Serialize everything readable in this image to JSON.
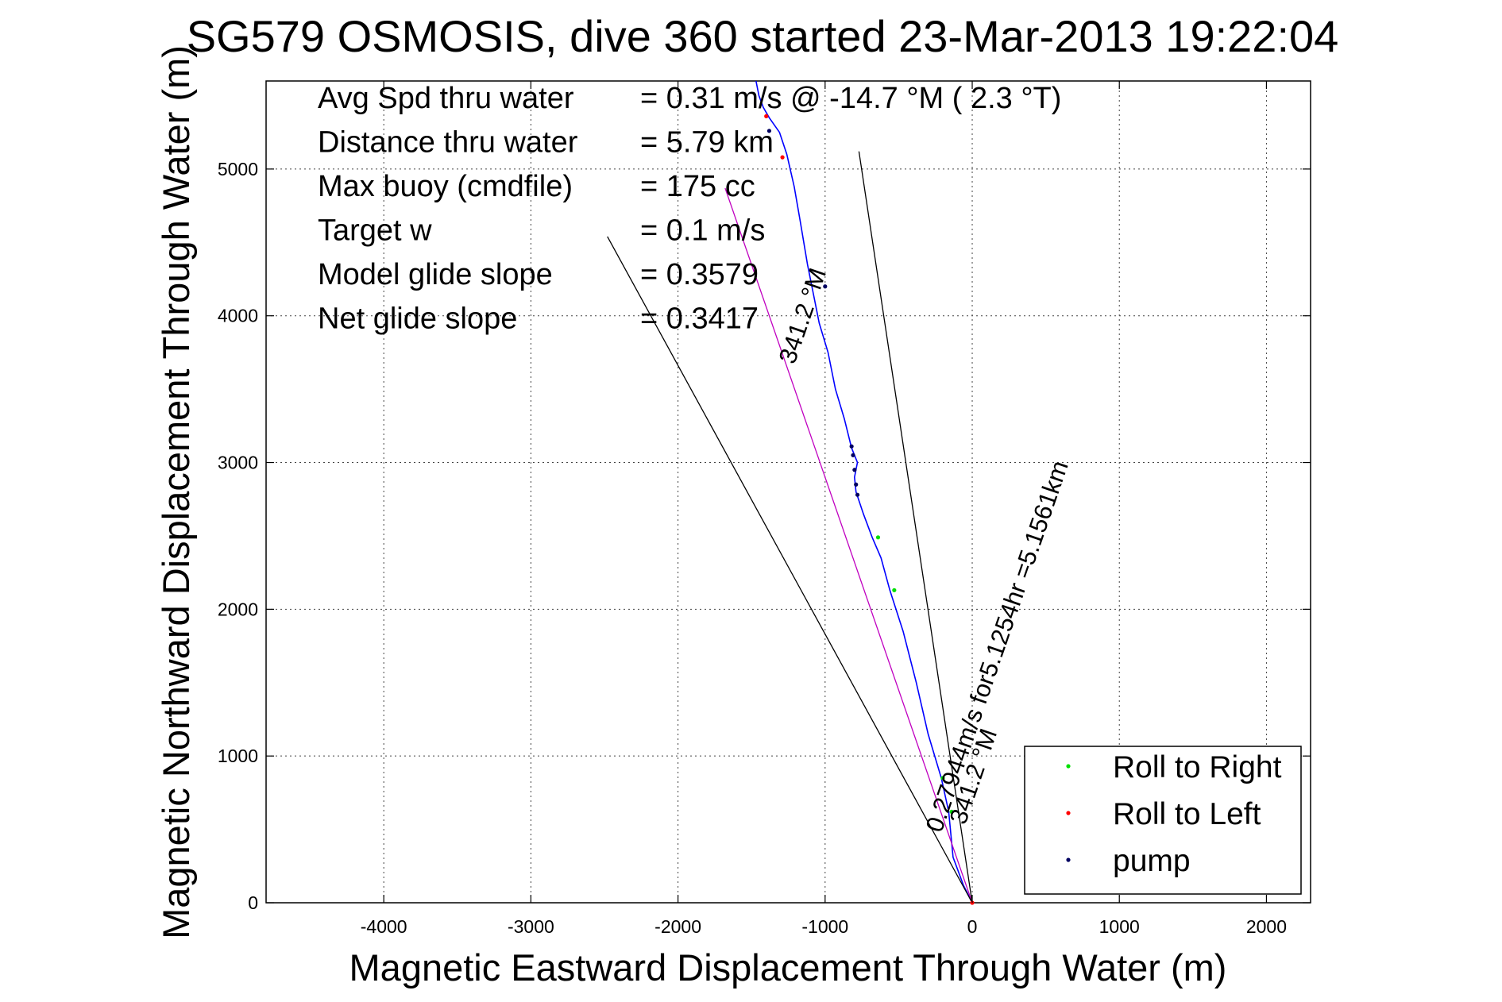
{
  "chart_data": {
    "type": "line",
    "title": "SG579 OSMOSIS, dive 360 started 23-Mar-2013 19:22:04",
    "xlabel": "Magnetic Eastward Displacement Through Water (m)",
    "ylabel": "Magnetic Northward Displacement Through Water (m)",
    "xlim": [
      -4800,
      2300
    ],
    "ylim": [
      0,
      5600
    ],
    "x_ticks": [
      -4000,
      -3000,
      -2000,
      -1000,
      0,
      1000,
      2000
    ],
    "y_ticks": [
      0,
      1000,
      2000,
      3000,
      4000,
      5000
    ],
    "grid": true,
    "legend_position": "bottom-right",
    "info_lines": [
      {
        "label": "Avg Spd thru water",
        "value": "=  0.31 m/s @ -14.7 °M (  2.3 °T)"
      },
      {
        "label": "Distance thru water",
        "value": "=  5.79 km"
      },
      {
        "label": "Max buoy (cmdfile)",
        "value": "= 175 cc"
      },
      {
        "label": "Target w",
        "value": "= 0.1 m/s"
      },
      {
        "label": "Model glide slope",
        "value": "= 0.3579"
      },
      {
        "label": "Net glide slope",
        "value": "= 0.3417"
      }
    ],
    "annotations": [
      {
        "text": "0.27944m/s for5.1254hr =5.1561km",
        "x": -240,
        "y": 500
      },
      {
        "text": "341.2 °M",
        "x": -180,
        "y": 520
      },
      {
        "text": "341.2 °M",
        "x": -1050,
        "y": 3900
      }
    ],
    "series": [
      {
        "name": "track",
        "style": "line",
        "color": "#0000ff",
        "x": [
          0,
          -60,
          -130,
          -160,
          -210,
          -300,
          -380,
          -470,
          -560,
          -620,
          -680,
          -740,
          -790,
          -800,
          -780,
          -820,
          -870,
          -930,
          -980,
          -1040,
          -1080,
          -1120,
          -1170,
          -1210,
          -1260,
          -1310,
          -1380,
          -1420,
          -1450,
          -1470
        ],
        "y": [
          0,
          120,
          310,
          620,
          850,
          1150,
          1500,
          1850,
          2130,
          2350,
          2490,
          2650,
          2800,
          2900,
          3000,
          3100,
          3300,
          3500,
          3750,
          3950,
          4150,
          4350,
          4650,
          4880,
          5100,
          5250,
          5350,
          5420,
          5500,
          5600
        ]
      },
      {
        "name": "Roll to Right",
        "style": "marker",
        "color": "#00e000",
        "x": [
          -140,
          -200,
          -530,
          -640
        ],
        "y": [
          620,
          850,
          2130,
          2490
        ]
      },
      {
        "name": "Roll to Left",
        "style": "marker",
        "color": "#ff0000",
        "x": [
          -1290,
          -1400,
          0
        ],
        "y": [
          5080,
          5360,
          0
        ]
      },
      {
        "name": "pump",
        "style": "marker",
        "color": "#000060",
        "x": [
          -780,
          -790,
          -800,
          -810,
          -820,
          -1000,
          -1380
        ],
        "y": [
          2780,
          2850,
          2950,
          3050,
          3110,
          4200,
          5260
        ]
      },
      {
        "name": "model-track",
        "style": "line",
        "color": "#c000c0",
        "x": [
          0,
          -1680
        ],
        "y": [
          0,
          4870
        ]
      },
      {
        "name": "bound-right",
        "style": "line",
        "color": "#000000",
        "x": [
          0,
          -770
        ],
        "y": [
          0,
          5120
        ]
      },
      {
        "name": "bound-left",
        "style": "line",
        "color": "#000000",
        "x": [
          0,
          -2480
        ],
        "y": [
          0,
          4540
        ]
      }
    ],
    "legend": [
      {
        "label": "Roll to Right",
        "color": "#00e000"
      },
      {
        "label": "Roll to Left",
        "color": "#ff0000"
      },
      {
        "label": "pump",
        "color": "#000060"
      }
    ]
  }
}
